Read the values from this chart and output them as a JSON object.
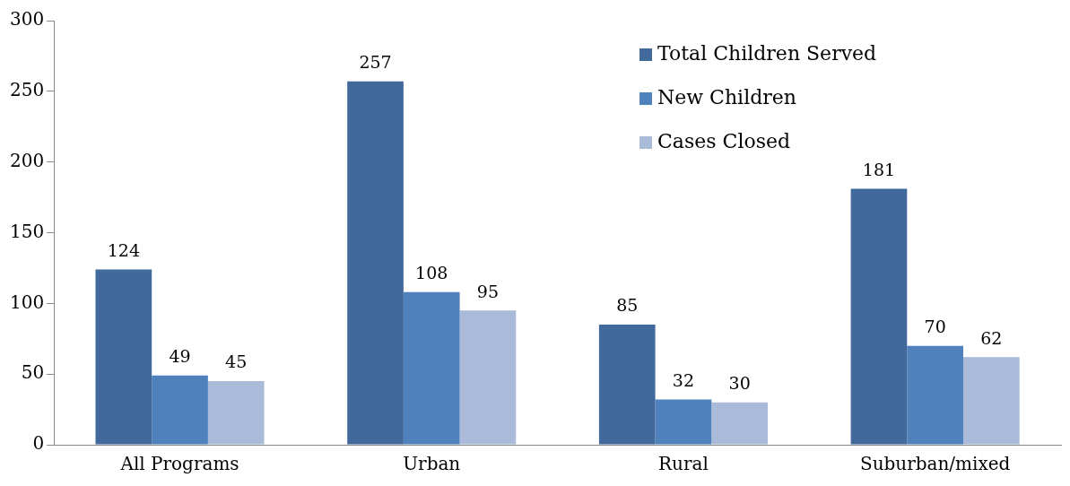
{
  "chart_data": {
    "type": "bar",
    "categories": [
      "All Programs",
      "Urban",
      "Rural",
      "Suburban/mixed"
    ],
    "series": [
      {
        "name": "Total Children Served",
        "color": "#41699c",
        "values": [
          124,
          257,
          85,
          181
        ]
      },
      {
        "name": "New Children",
        "color": "#4f81bd",
        "values": [
          49,
          108,
          32,
          70
        ]
      },
      {
        "name": "Cases Closed",
        "color": "#a9bbd9",
        "values": [
          45,
          95,
          30,
          62
        ]
      }
    ],
    "ylim": [
      0,
      300
    ],
    "yticks": [
      0,
      50,
      100,
      150,
      200,
      250,
      300
    ],
    "grid": false,
    "legend": "top right",
    "data_labels": true
  }
}
